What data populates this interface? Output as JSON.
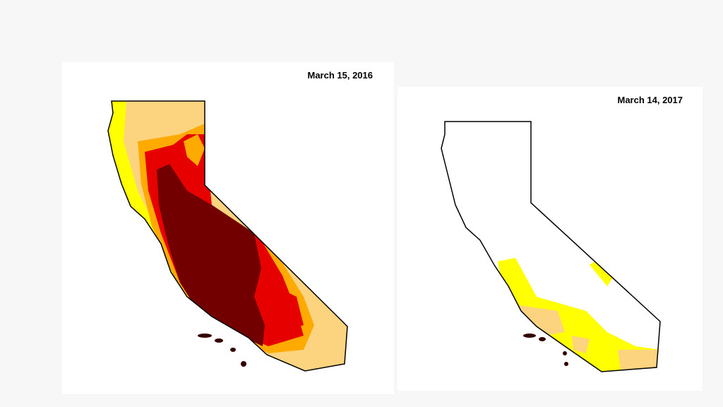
{
  "maps": [
    {
      "date": "March 15, 2016"
    },
    {
      "date": "March 14, 2017"
    }
  ]
}
